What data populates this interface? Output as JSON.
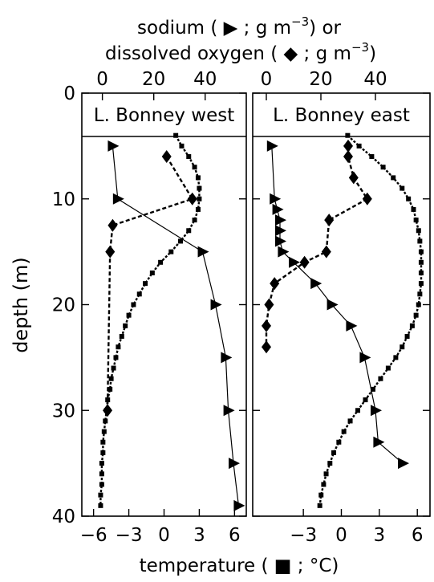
{
  "top_label_line1": "sodium ( ▶ ; g m",
  "top_label_line1_sup": "−3",
  "top_label_line1_end": ") or",
  "top_label_line2": "dissolved oxygen ( ◆ ; g m",
  "top_label_line2_sup": "−3",
  "top_label_line2_end": ")",
  "bottom_label": "temperature ( ■ ; °C)",
  "y_label": "depth (m)",
  "colors": {
    "line": "#000000",
    "background": "#ffffff"
  },
  "chart_data": [
    {
      "type": "line",
      "panel_title": "L. Bonney west",
      "ylabel": "depth (m)",
      "ylim": [
        40,
        0
      ],
      "y_ticks": [
        0,
        10,
        20,
        30,
        40
      ],
      "x_bottom": {
        "label": "temperature (■; °C)",
        "lim": [
          -7,
          7
        ],
        "ticks": [
          -6,
          -3,
          0,
          3,
          6
        ]
      },
      "x_top": {
        "label": "sodium (▶; g m⁻³) or dissolved oxygen (◆; g m⁻³)",
        "lim": [
          -8,
          56
        ],
        "ticks": [
          0,
          20,
          40
        ]
      },
      "series": [
        {
          "name": "temperature",
          "axis": "bottom",
          "marker": "square",
          "line": "dotted",
          "depth": [
            4,
            5,
            6,
            7,
            8,
            9,
            10,
            11,
            12,
            13,
            14,
            15,
            16,
            17,
            18,
            19,
            20,
            21,
            22,
            23,
            24,
            25,
            26,
            27,
            28,
            29,
            30,
            31,
            32,
            33,
            34,
            35,
            36,
            37,
            38,
            39
          ],
          "values": [
            1.0,
            1.5,
            2.1,
            2.6,
            2.9,
            3.0,
            3.0,
            2.9,
            2.6,
            2.1,
            1.4,
            0.6,
            -0.3,
            -1.0,
            -1.6,
            -2.1,
            -2.6,
            -3.0,
            -3.3,
            -3.6,
            -3.9,
            -4.1,
            -4.3,
            -4.5,
            -4.6,
            -4.8,
            -4.9,
            -5.0,
            -5.1,
            -5.2,
            -5.2,
            -5.3,
            -5.3,
            -5.3,
            -5.4,
            -5.4
          ]
        },
        {
          "name": "sodium",
          "axis": "top",
          "marker": "triangle-right",
          "line": "solid",
          "depth": [
            5,
            10,
            15,
            20,
            25,
            30,
            35,
            39
          ],
          "values": [
            4,
            6,
            39,
            44,
            48,
            49,
            51,
            53
          ]
        },
        {
          "name": "dissolved oxygen",
          "axis": "top",
          "marker": "diamond",
          "line": "dashed",
          "depth": [
            6,
            10,
            12.5,
            15,
            30
          ],
          "values": [
            25,
            35,
            4,
            3,
            2
          ]
        }
      ]
    },
    {
      "type": "line",
      "panel_title": "L. Bonney east",
      "ylabel": "depth (m)",
      "ylim": [
        40,
        0
      ],
      "y_ticks": [
        0,
        10,
        20,
        30,
        40
      ],
      "x_bottom": {
        "label": "temperature (■; °C)",
        "lim": [
          -7,
          7
        ],
        "ticks": [
          -3,
          0,
          3,
          6
        ]
      },
      "x_top": {
        "label": "sodium (▶; g m⁻³) or dissolved oxygen (◆; g m⁻³)",
        "lim": [
          -5,
          60
        ],
        "ticks": [
          0,
          20,
          40
        ]
      },
      "series": [
        {
          "name": "temperature",
          "axis": "bottom",
          "marker": "square",
          "line": "dotted",
          "depth": [
            4,
            5,
            6,
            7,
            8,
            9,
            10,
            11,
            12,
            13,
            14,
            15,
            16,
            17,
            18,
            19,
            20,
            21,
            22,
            23,
            24,
            25,
            26,
            27,
            28,
            29,
            30,
            31,
            32,
            33,
            34,
            35,
            36,
            37,
            38,
            39
          ],
          "values": [
            0.5,
            1.4,
            2.4,
            3.3,
            4.1,
            4.8,
            5.3,
            5.7,
            5.9,
            6.1,
            6.2,
            6.3,
            6.3,
            6.3,
            6.3,
            6.2,
            6.1,
            5.9,
            5.6,
            5.2,
            4.8,
            4.3,
            3.7,
            3.1,
            2.5,
            1.9,
            1.3,
            0.7,
            0.2,
            -0.2,
            -0.6,
            -0.9,
            -1.2,
            -1.4,
            -1.6,
            -1.7
          ]
        },
        {
          "name": "sodium",
          "axis": "top",
          "marker": "triangle-right",
          "line": "solid",
          "depth": [
            5,
            10,
            11,
            12,
            13,
            14,
            15,
            16,
            18,
            20,
            22,
            25,
            30,
            33,
            35
          ],
          "values": [
            2,
            3,
            4,
            5,
            5,
            5,
            6,
            10,
            18,
            24,
            31,
            36,
            40,
            41,
            50
          ]
        },
        {
          "name": "dissolved oxygen",
          "axis": "top",
          "marker": "diamond",
          "line": "dashed",
          "depth": [
            5,
            6,
            8,
            10,
            12,
            15,
            16,
            18,
            20,
            22,
            24
          ],
          "values": [
            30,
            30,
            32,
            37,
            23,
            22,
            14,
            3,
            1,
            0,
            0
          ]
        }
      ]
    }
  ]
}
